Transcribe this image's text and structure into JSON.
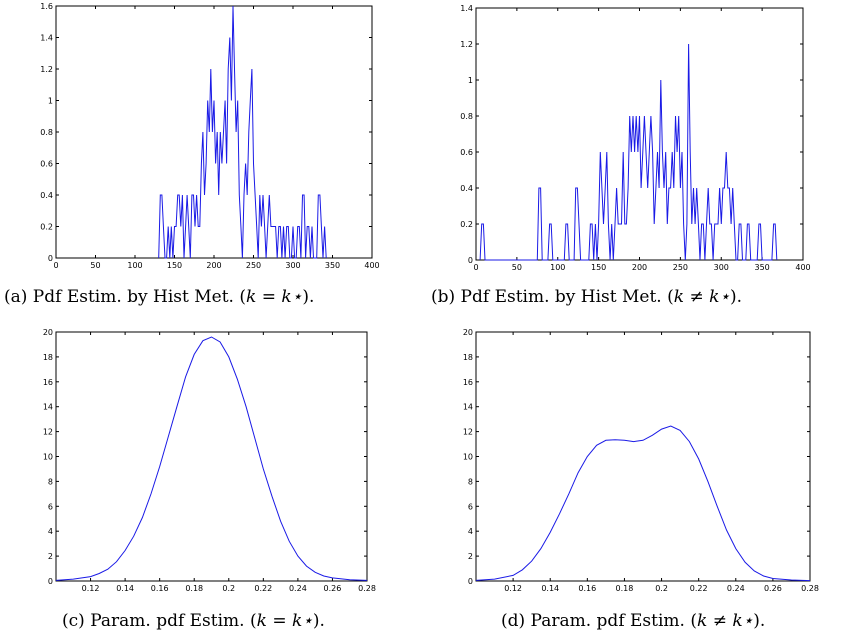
{
  "figure": {
    "captions": [
      {
        "id": "a",
        "prefix": "(a) Pdf Estim. by Hist Met. (",
        "math": "k = k⋆",
        "suffix": ")."
      },
      {
        "id": "b",
        "prefix": "(b) Pdf Estim. by Hist Met. (",
        "math": "k ≠ k⋆",
        "suffix": ")."
      },
      {
        "id": "c",
        "prefix": "(c) Param. pdf Estim. (",
        "math": "k = k⋆",
        "suffix": ")."
      },
      {
        "id": "d",
        "prefix": "(d) Param. pdf Estim. (",
        "math": "k ≠ k⋆",
        "suffix": ")."
      }
    ]
  },
  "chart_data": [
    {
      "id": "a",
      "type": "line",
      "style": "histogram-outline",
      "title": "",
      "xlabel": "",
      "ylabel": "",
      "xlim": [
        0,
        400
      ],
      "ylim": [
        0,
        1.6
      ],
      "xticks": [
        0,
        50,
        100,
        150,
        200,
        250,
        300,
        350,
        400
      ],
      "yticks": [
        0,
        0.2,
        0.4,
        0.6,
        0.8,
        1,
        1.2,
        1.4,
        1.6
      ],
      "x": [
        130,
        132,
        134,
        136,
        138,
        140,
        142,
        144,
        146,
        148,
        150,
        152,
        154,
        156,
        158,
        160,
        162,
        164,
        166,
        168,
        170,
        172,
        174,
        176,
        178,
        180,
        182,
        184,
        186,
        188,
        190,
        192,
        194,
        196,
        198,
        200,
        202,
        204,
        206,
        208,
        210,
        212,
        214,
        216,
        218,
        220,
        222,
        224,
        226,
        228,
        230,
        232,
        234,
        236,
        238,
        240,
        242,
        244,
        246,
        248,
        250,
        252,
        254,
        256,
        258,
        260,
        262,
        264,
        266,
        268,
        270,
        272,
        274,
        276,
        278,
        280,
        282,
        284,
        286,
        288,
        290,
        292,
        294,
        296,
        298,
        300,
        302,
        304,
        306,
        308,
        310,
        312,
        314,
        316,
        318,
        320,
        322,
        324,
        326,
        328,
        330,
        332,
        334,
        336,
        338,
        340,
        342
      ],
      "values": [
        0,
        0.4,
        0.4,
        0.2,
        0,
        0,
        0.2,
        0,
        0.2,
        0,
        0.2,
        0.2,
        0.4,
        0.4,
        0.2,
        0.4,
        0,
        0.2,
        0.4,
        0.2,
        0,
        0.4,
        0.4,
        0.2,
        0.4,
        0.2,
        0.2,
        0.6,
        0.8,
        0.4,
        0.6,
        1.0,
        0.8,
        1.2,
        0.8,
        1.0,
        0.6,
        0.8,
        0.4,
        0.8,
        0.6,
        0.8,
        1.0,
        0.6,
        1.2,
        1.4,
        1.0,
        1.6,
        1.2,
        0.8,
        1.0,
        0.4,
        0.2,
        0,
        0.4,
        0.6,
        0.4,
        0.8,
        1.0,
        1.2,
        0.6,
        0.4,
        0.2,
        0,
        0.4,
        0.2,
        0.4,
        0.2,
        0,
        0.2,
        0.4,
        0.2,
        0.2,
        0.2,
        0.2,
        0,
        0.2,
        0.2,
        0,
        0.2,
        0,
        0.2,
        0.2,
        0,
        0,
        0.2,
        0,
        0,
        0.2,
        0.2,
        0,
        0.4,
        0.4,
        0,
        0.2,
        0.2,
        0,
        0.2,
        0,
        0,
        0,
        0.4,
        0.4,
        0.2,
        0,
        0.2,
        0
      ]
    },
    {
      "id": "b",
      "type": "line",
      "style": "histogram-outline",
      "title": "",
      "xlabel": "",
      "ylabel": "",
      "xlim": [
        0,
        400
      ],
      "ylim": [
        0,
        1.4
      ],
      "xticks": [
        0,
        50,
        100,
        150,
        200,
        250,
        300,
        350,
        400
      ],
      "yticks": [
        0,
        0.2,
        0.4,
        0.6,
        0.8,
        1,
        1.2,
        1.4
      ],
      "x": [
        5,
        7,
        9,
        11,
        13,
        75,
        77,
        79,
        81,
        83,
        88,
        90,
        92,
        94,
        96,
        108,
        110,
        112,
        114,
        116,
        120,
        122,
        124,
        126,
        128,
        138,
        140,
        142,
        144,
        146,
        148,
        150,
        152,
        154,
        156,
        158,
        160,
        162,
        164,
        166,
        168,
        170,
        172,
        174,
        176,
        178,
        180,
        182,
        184,
        186,
        188,
        190,
        192,
        194,
        196,
        198,
        200,
        202,
        204,
        206,
        208,
        210,
        212,
        214,
        216,
        218,
        220,
        222,
        224,
        226,
        228,
        230,
        232,
        234,
        236,
        238,
        240,
        242,
        244,
        246,
        248,
        250,
        252,
        254,
        256,
        258,
        260,
        262,
        264,
        266,
        268,
        270,
        272,
        274,
        276,
        278,
        280,
        282,
        284,
        286,
        288,
        290,
        292,
        294,
        296,
        298,
        300,
        302,
        304,
        306,
        308,
        310,
        312,
        314,
        316,
        318,
        320,
        322,
        324,
        326,
        328,
        330,
        332,
        334,
        336,
        338,
        340,
        342,
        344,
        346,
        348,
        350,
        352,
        354,
        356,
        358,
        360,
        362,
        364,
        366,
        368
      ],
      "values": [
        0,
        0.2,
        0.2,
        0,
        0,
        0,
        0.4,
        0.4,
        0,
        0,
        0,
        0.2,
        0.2,
        0,
        0,
        0,
        0.2,
        0.2,
        0,
        0,
        0,
        0.4,
        0.4,
        0.2,
        0,
        0,
        0.2,
        0.2,
        0,
        0.2,
        0,
        0.2,
        0.6,
        0.4,
        0.2,
        0.4,
        0.6,
        0.2,
        0,
        0.2,
        0,
        0.2,
        0.4,
        0.2,
        0.2,
        0.2,
        0.6,
        0.2,
        0.2,
        0.4,
        0.8,
        0.6,
        0.8,
        0.6,
        0.8,
        0.6,
        0.8,
        0.4,
        0.6,
        0.8,
        0.6,
        0.4,
        0.6,
        0.8,
        0.6,
        0.2,
        0.4,
        0.6,
        0.4,
        1.0,
        0.6,
        0.4,
        0.6,
        0.2,
        0.4,
        0.4,
        0.6,
        0.4,
        0.8,
        0.6,
        0.8,
        0.4,
        0.6,
        0.2,
        0,
        0.2,
        1.2,
        0.6,
        0.2,
        0.4,
        0.2,
        0.4,
        0.2,
        0,
        0.2,
        0.2,
        0,
        0.2,
        0.4,
        0.2,
        0.2,
        0,
        0.2,
        0.2,
        0.2,
        0.4,
        0.2,
        0.4,
        0.4,
        0.6,
        0.4,
        0.4,
        0.2,
        0.4,
        0.2,
        0,
        0,
        0.2,
        0.2,
        0,
        0,
        0,
        0.2,
        0.2,
        0,
        0,
        0,
        0,
        0,
        0.2,
        0.2,
        0,
        0,
        0,
        0,
        0,
        0,
        0,
        0.2,
        0.2,
        0
      ]
    },
    {
      "id": "c",
      "type": "line",
      "title": "",
      "xlabel": "",
      "ylabel": "",
      "xlim": [
        0.1,
        0.28
      ],
      "ylim": [
        0,
        20
      ],
      "xticks": [
        0.12,
        0.14,
        0.16,
        0.18,
        0.2,
        0.22,
        0.24,
        0.26,
        0.28
      ],
      "yticks": [
        0,
        2,
        4,
        6,
        8,
        10,
        12,
        14,
        16,
        18,
        20
      ],
      "x": [
        0.1,
        0.11,
        0.12,
        0.125,
        0.13,
        0.135,
        0.14,
        0.145,
        0.15,
        0.155,
        0.16,
        0.165,
        0.17,
        0.175,
        0.18,
        0.185,
        0.19,
        0.195,
        0.2,
        0.205,
        0.21,
        0.215,
        0.22,
        0.225,
        0.23,
        0.235,
        0.24,
        0.245,
        0.25,
        0.255,
        0.26,
        0.27,
        0.28
      ],
      "values": [
        0.05,
        0.15,
        0.35,
        0.6,
        0.95,
        1.55,
        2.45,
        3.6,
        5.1,
        7.0,
        9.2,
        11.6,
        14.0,
        16.4,
        18.2,
        19.3,
        19.6,
        19.2,
        18.0,
        16.2,
        14.0,
        11.5,
        9.0,
        6.8,
        4.8,
        3.2,
        2.0,
        1.2,
        0.7,
        0.4,
        0.25,
        0.1,
        0.05
      ]
    },
    {
      "id": "d",
      "type": "line",
      "title": "",
      "xlabel": "",
      "ylabel": "",
      "xlim": [
        0.1,
        0.28
      ],
      "ylim": [
        0,
        20
      ],
      "xticks": [
        0.12,
        0.14,
        0.16,
        0.18,
        0.2,
        0.22,
        0.24,
        0.26,
        0.28
      ],
      "yticks": [
        0,
        2,
        4,
        6,
        8,
        10,
        12,
        14,
        16,
        18,
        20
      ],
      "x": [
        0.1,
        0.11,
        0.12,
        0.125,
        0.13,
        0.135,
        0.14,
        0.145,
        0.15,
        0.155,
        0.16,
        0.165,
        0.17,
        0.175,
        0.18,
        0.185,
        0.19,
        0.195,
        0.2,
        0.205,
        0.21,
        0.215,
        0.22,
        0.225,
        0.23,
        0.235,
        0.24,
        0.245,
        0.25,
        0.255,
        0.26,
        0.27,
        0.28
      ],
      "values": [
        0.05,
        0.15,
        0.45,
        0.9,
        1.6,
        2.6,
        3.9,
        5.4,
        7.0,
        8.7,
        10.0,
        10.9,
        11.3,
        11.35,
        11.3,
        11.2,
        11.3,
        11.7,
        12.2,
        12.45,
        12.1,
        11.2,
        9.8,
        8.0,
        6.0,
        4.1,
        2.6,
        1.5,
        0.8,
        0.4,
        0.2,
        0.08,
        0.03
      ]
    }
  ]
}
